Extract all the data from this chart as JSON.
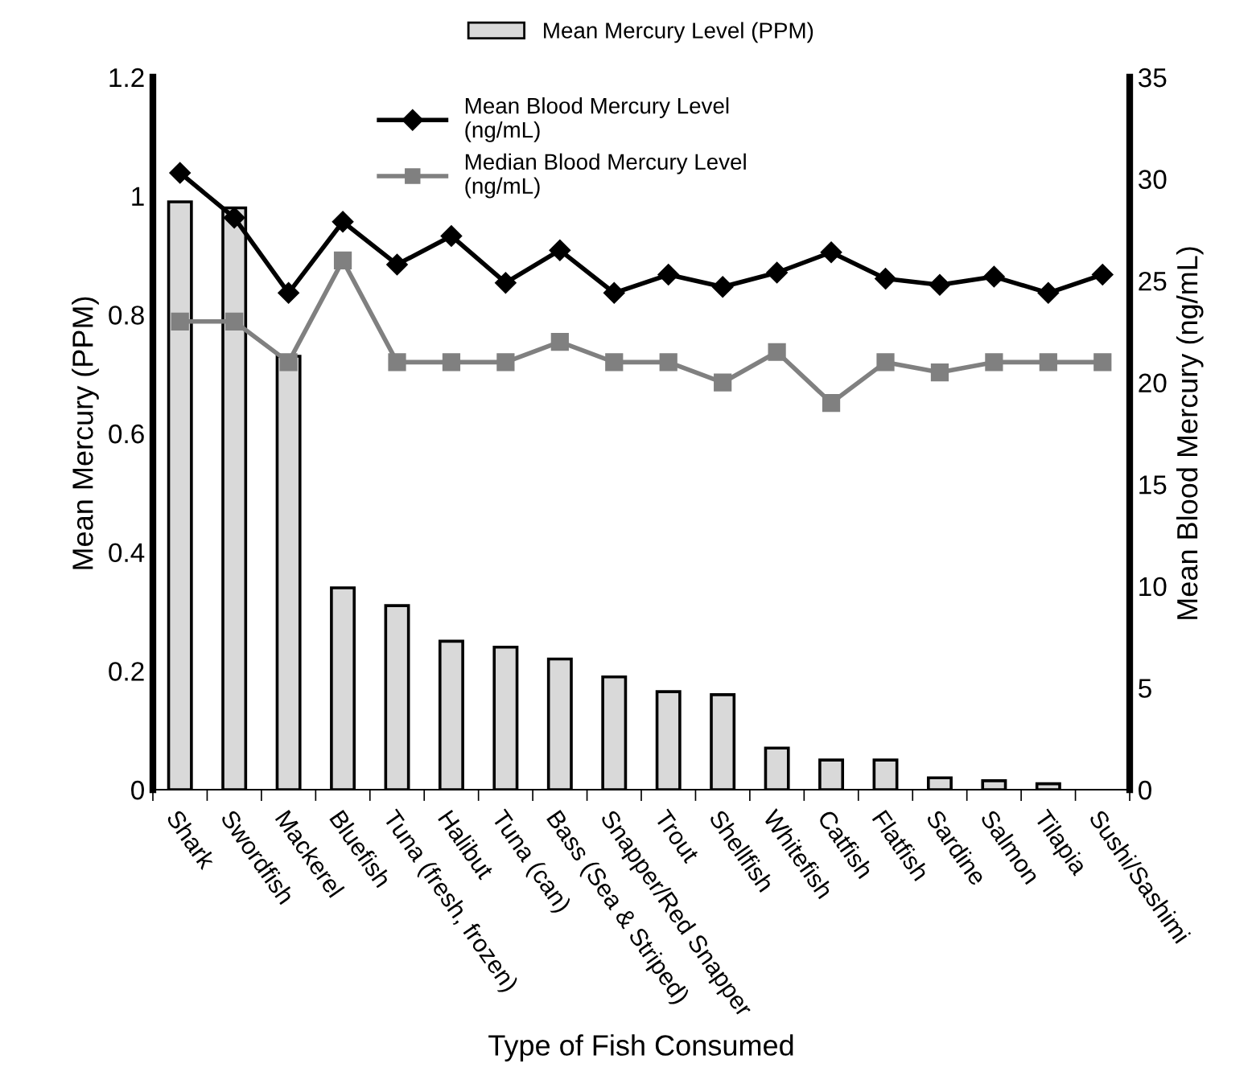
{
  "chart_data": {
    "type": "bar",
    "xlabel": "Type of Fish Consumed",
    "ylabel": "Mean Mercury (PPM)",
    "y2label": "Mean Blood Mercury (ng/mL)",
    "categories": [
      "Shark",
      "Swordfish",
      "Mackerel",
      "Bluefish",
      "Tuna (fresh, frozen)",
      "Halibut",
      "Tuna (can)",
      "Bass (Sea & Striped)",
      "Snapper/Red Snapper",
      "Trout",
      "Shellfish",
      "Whitefish",
      "Catfish",
      "Flatfish",
      "Sardine",
      "Salmon",
      "Tilapia",
      "Sushi/Sashimi"
    ],
    "series": [
      {
        "name": "Mean Mercury Level (PPM)",
        "color": "#d9d9d9",
        "values": [
          0.99,
          0.98,
          0.73,
          0.34,
          0.31,
          0.25,
          0.24,
          0.22,
          0.19,
          0.165,
          0.16,
          0.07,
          0.05,
          0.05,
          0.02,
          0.015,
          0.01,
          null
        ]
      },
      {
        "name": "Mean Blood Mercury Level (ng/mL)",
        "type": "line",
        "axis": "y2",
        "color": "#000000",
        "marker": "diamond",
        "values": [
          30.3,
          28.1,
          24.4,
          27.9,
          25.8,
          27.2,
          24.9,
          26.5,
          24.4,
          25.3,
          24.7,
          25.4,
          26.4,
          25.1,
          24.8,
          25.2,
          24.4,
          25.3
        ]
      },
      {
        "name": "Median Blood Mercury Level (ng/mL)",
        "type": "line",
        "axis": "y2",
        "color": "#808080",
        "marker": "square",
        "values": [
          23,
          23,
          21,
          26,
          21,
          21,
          21,
          22,
          21,
          21,
          20,
          21.5,
          19,
          21,
          20.5,
          21,
          21,
          21
        ]
      }
    ],
    "ylim": [
      0,
      1.2
    ],
    "yticks": [
      0,
      0.2,
      0.4,
      0.6,
      0.8,
      1,
      1.2
    ],
    "y2lim": [
      0,
      35
    ],
    "y2ticks": [
      0,
      5,
      10,
      15,
      20,
      25,
      30,
      35
    ],
    "grid": false,
    "legend": "top"
  }
}
